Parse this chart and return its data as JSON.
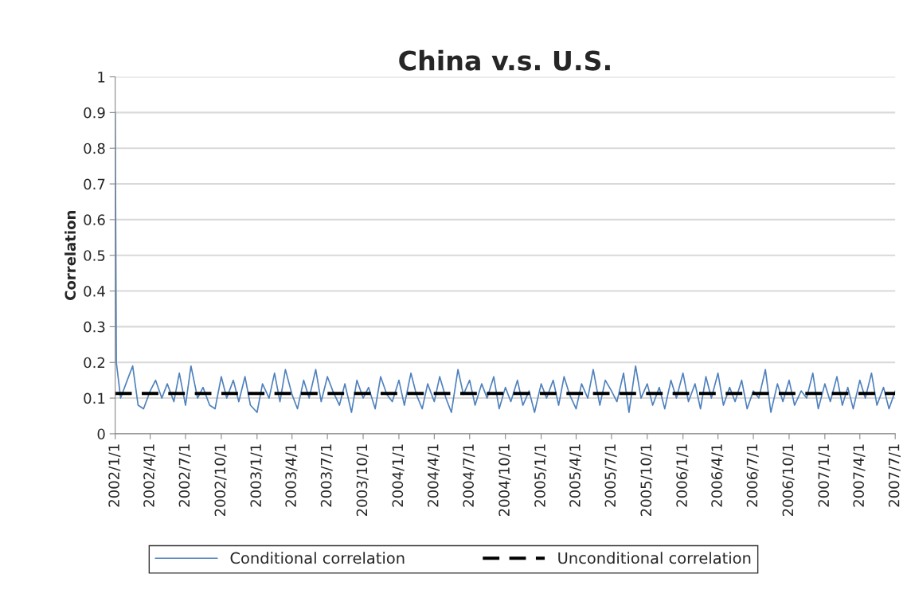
{
  "chart_data": {
    "type": "line",
    "title": "China v.s. U.S.",
    "ylabel": "Correlation",
    "xlim": [
      "2002-01-01",
      "2007-07-01"
    ],
    "xticks": [
      {
        "value": "2002-01-01",
        "label": "2002/1/1"
      },
      {
        "value": "2002-04-01",
        "label": "2002/4/1"
      },
      {
        "value": "2002-07-01",
        "label": "2002/7/1"
      },
      {
        "value": "2002-10-01",
        "label": "2002/10/1"
      },
      {
        "value": "2003-01-01",
        "label": "2003/1/1"
      },
      {
        "value": "2003-04-01",
        "label": "2003/4/1"
      },
      {
        "value": "2003-07-01",
        "label": "2003/7/1"
      },
      {
        "value": "2003-10-01",
        "label": "2003/10/1"
      },
      {
        "value": "2004-01-01",
        "label": "2004/1/1"
      },
      {
        "value": "2004-04-01",
        "label": "2004/4/1"
      },
      {
        "value": "2004-07-01",
        "label": "2004/7/1"
      },
      {
        "value": "2004-10-01",
        "label": "2004/10/1"
      },
      {
        "value": "2005-01-01",
        "label": "2005/1/1"
      },
      {
        "value": "2005-04-01",
        "label": "2005/4/1"
      },
      {
        "value": "2005-07-01",
        "label": "2005/7/1"
      },
      {
        "value": "2005-10-01",
        "label": "2005/10/1"
      },
      {
        "value": "2006-01-01",
        "label": "2006/1/1"
      },
      {
        "value": "2006-04-01",
        "label": "2006/4/1"
      },
      {
        "value": "2006-07-01",
        "label": "2006/7/1"
      },
      {
        "value": "2006-10-01",
        "label": "2006/10/1"
      },
      {
        "value": "2007-01-01",
        "label": "2007/1/1"
      },
      {
        "value": "2007-04-01",
        "label": "2007/4/1"
      },
      {
        "value": "2007-07-01",
        "label": "2007/7/1"
      }
    ],
    "ylim": [
      0,
      1
    ],
    "yticks": [
      0,
      0.1,
      0.2,
      0.3,
      0.4,
      0.5,
      0.6,
      0.7,
      0.8,
      0.9,
      1
    ],
    "grid": "y",
    "legend": "bottom",
    "line_style": "solid",
    "marker": "none",
    "series": [
      {
        "name": "Conditional correlation",
        "color": "#4f81bd",
        "x": [
          "2002-01-01",
          "2002-01-04",
          "2002-01-15",
          "2002-02-01",
          "2002-02-15",
          "2002-03-01",
          "2002-03-15",
          "2002-04-01",
          "2002-04-15",
          "2002-05-01",
          "2002-05-15",
          "2002-06-01",
          "2002-06-15",
          "2002-07-01",
          "2002-07-15",
          "2002-08-01",
          "2002-08-15",
          "2002-09-01",
          "2002-09-15",
          "2002-10-01",
          "2002-10-15",
          "2002-11-01",
          "2002-11-15",
          "2002-12-01",
          "2002-12-15",
          "2003-01-01",
          "2003-01-15",
          "2003-02-01",
          "2003-02-15",
          "2003-03-01",
          "2003-03-15",
          "2003-04-01",
          "2003-04-15",
          "2003-05-01",
          "2003-05-15",
          "2003-06-01",
          "2003-06-15",
          "2003-07-01",
          "2003-07-15",
          "2003-08-01",
          "2003-08-15",
          "2003-09-01",
          "2003-09-15",
          "2003-10-01",
          "2003-10-15",
          "2003-11-01",
          "2003-11-15",
          "2003-12-01",
          "2003-12-15",
          "2004-01-01",
          "2004-01-15",
          "2004-02-01",
          "2004-02-15",
          "2004-03-01",
          "2004-03-15",
          "2004-04-01",
          "2004-04-15",
          "2004-05-01",
          "2004-05-15",
          "2004-06-01",
          "2004-06-15",
          "2004-07-01",
          "2004-07-15",
          "2004-08-01",
          "2004-08-15",
          "2004-09-01",
          "2004-09-15",
          "2004-10-01",
          "2004-10-15",
          "2004-11-01",
          "2004-11-15",
          "2004-12-01",
          "2004-12-15",
          "2005-01-01",
          "2005-01-15",
          "2005-02-01",
          "2005-02-15",
          "2005-03-01",
          "2005-03-15",
          "2005-04-01",
          "2005-04-15",
          "2005-05-01",
          "2005-05-15",
          "2005-06-01",
          "2005-06-15",
          "2005-07-01",
          "2005-07-15",
          "2005-08-01",
          "2005-08-15",
          "2005-09-01",
          "2005-09-15",
          "2005-10-01",
          "2005-10-15",
          "2005-11-01",
          "2005-11-15",
          "2005-12-01",
          "2005-12-15",
          "2006-01-01",
          "2006-01-15",
          "2006-02-01",
          "2006-02-15",
          "2006-03-01",
          "2006-03-15",
          "2006-04-01",
          "2006-04-15",
          "2006-05-01",
          "2006-05-15",
          "2006-06-01",
          "2006-06-15",
          "2006-07-01",
          "2006-07-15",
          "2006-08-01",
          "2006-08-15",
          "2006-09-01",
          "2006-09-15",
          "2006-10-01",
          "2006-10-15",
          "2006-11-01",
          "2006-11-15",
          "2006-12-01",
          "2006-12-15",
          "2007-01-01",
          "2007-01-15",
          "2007-02-01",
          "2007-02-15",
          "2007-03-01",
          "2007-03-15",
          "2007-04-01",
          "2007-04-15",
          "2007-05-01",
          "2007-05-15",
          "2007-06-01",
          "2007-06-15",
          "2007-07-01"
        ],
        "values": [
          0.9,
          0.2,
          0.1,
          0.15,
          0.19,
          0.08,
          0.07,
          0.12,
          0.15,
          0.1,
          0.14,
          0.09,
          0.17,
          0.08,
          0.19,
          0.1,
          0.13,
          0.08,
          0.07,
          0.16,
          0.1,
          0.15,
          0.09,
          0.16,
          0.08,
          0.06,
          0.14,
          0.1,
          0.17,
          0.09,
          0.18,
          0.11,
          0.07,
          0.15,
          0.1,
          0.18,
          0.09,
          0.16,
          0.12,
          0.08,
          0.14,
          0.06,
          0.15,
          0.1,
          0.13,
          0.07,
          0.16,
          0.11,
          0.09,
          0.15,
          0.08,
          0.17,
          0.11,
          0.07,
          0.14,
          0.09,
          0.16,
          0.1,
          0.06,
          0.18,
          0.11,
          0.15,
          0.08,
          0.14,
          0.1,
          0.16,
          0.07,
          0.13,
          0.09,
          0.15,
          0.08,
          0.12,
          0.06,
          0.14,
          0.1,
          0.15,
          0.08,
          0.16,
          0.11,
          0.07,
          0.14,
          0.1,
          0.18,
          0.08,
          0.15,
          0.12,
          0.09,
          0.17,
          0.06,
          0.19,
          0.1,
          0.14,
          0.08,
          0.13,
          0.07,
          0.15,
          0.1,
          0.17,
          0.09,
          0.14,
          0.07,
          0.16,
          0.1,
          0.17,
          0.08,
          0.13,
          0.09,
          0.15,
          0.07,
          0.12,
          0.1,
          0.18,
          0.06,
          0.14,
          0.09,
          0.15,
          0.08,
          0.12,
          0.1,
          0.17,
          0.07,
          0.14,
          0.09,
          0.16,
          0.08,
          0.13,
          0.07,
          0.15,
          0.1,
          0.17,
          0.08,
          0.13,
          0.07,
          0.12
        ]
      }
    ],
    "ref_lines": [
      {
        "axis": "y",
        "value": 0.113,
        "label": "Unconditional correlation",
        "color": "#000000",
        "line_style": "dashed"
      }
    ]
  }
}
